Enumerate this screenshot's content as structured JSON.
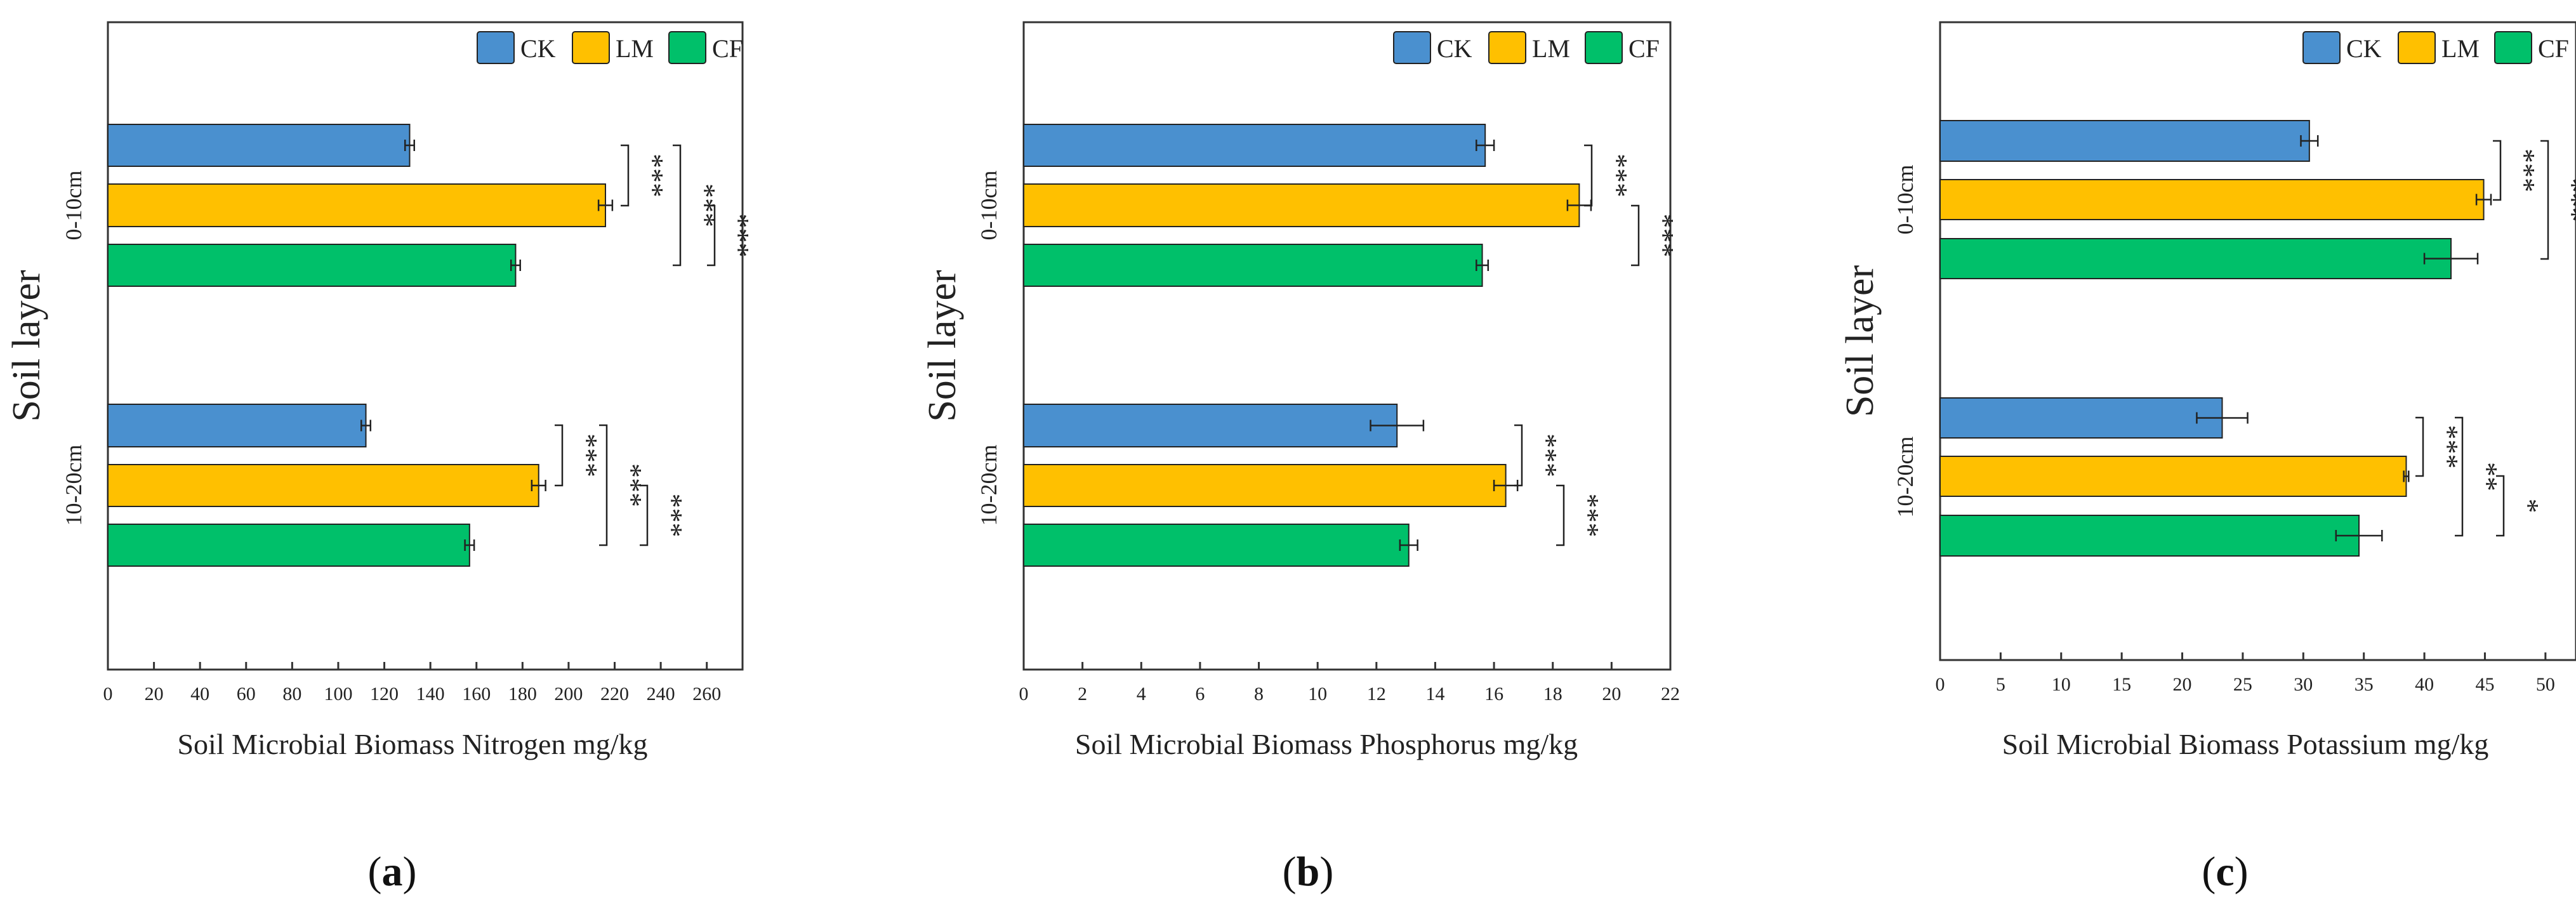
{
  "colors": {
    "CK": "#4a90cf",
    "LM": "#ffc000",
    "CF": "#00c06a",
    "frame": "#333333"
  },
  "chart_data": [
    {
      "type": "bar",
      "orientation": "horizontal",
      "panel": "a",
      "xlabel": "Soil Microbial Biomass Nitrogen mg/kg",
      "ylabel": "Soil layer",
      "xlim": [
        0,
        270
      ],
      "xticks": [
        0,
        20,
        40,
        60,
        80,
        100,
        120,
        140,
        160,
        180,
        200,
        220,
        240,
        260
      ],
      "legend": [
        "CK",
        "LM",
        "CF"
      ],
      "categories": [
        "0-10cm",
        "10-20cm"
      ],
      "series": [
        {
          "name": "CK",
          "values": [
            131,
            112
          ],
          "errors": [
            2,
            2
          ]
        },
        {
          "name": "LM",
          "values": [
            216,
            187
          ],
          "errors": [
            3,
            3
          ]
        },
        {
          "name": "CF",
          "values": [
            177,
            157
          ],
          "errors": [
            2,
            2
          ]
        }
      ],
      "significance": [
        {
          "group": "0-10cm",
          "from": "CK",
          "to": "LM",
          "label": "***"
        },
        {
          "group": "0-10cm",
          "from": "CK",
          "to": "CF",
          "label": "***"
        },
        {
          "group": "0-10cm",
          "from": "LM",
          "to": "CF",
          "label": "***"
        },
        {
          "group": "10-20cm",
          "from": "CK",
          "to": "LM",
          "label": "***"
        },
        {
          "group": "10-20cm",
          "from": "CK",
          "to": "CF",
          "label": "***"
        },
        {
          "group": "10-20cm",
          "from": "LM",
          "to": "CF",
          "label": "***"
        }
      ]
    },
    {
      "type": "bar",
      "orientation": "horizontal",
      "panel": "b",
      "xlabel": "Soil  Microbial Biomass Phosphorus mg/kg",
      "ylabel": "Soil layer",
      "xlim": [
        0,
        22
      ],
      "xticks": [
        0,
        2,
        4,
        6,
        8,
        10,
        12,
        14,
        16,
        18,
        20,
        22
      ],
      "legend": [
        "CK",
        "LM",
        "CF"
      ],
      "categories": [
        "0-10cm",
        "10-20cm"
      ],
      "series": [
        {
          "name": "CK",
          "values": [
            15.7,
            12.7
          ],
          "errors": [
            0.3,
            0.9
          ]
        },
        {
          "name": "LM",
          "values": [
            18.9,
            16.4
          ],
          "errors": [
            0.4,
            0.4
          ]
        },
        {
          "name": "CF",
          "values": [
            15.6,
            13.1
          ],
          "errors": [
            0.2,
            0.3
          ]
        }
      ],
      "significance": [
        {
          "group": "0-10cm",
          "from": "CK",
          "to": "LM",
          "label": "***"
        },
        {
          "group": "0-10cm",
          "from": "LM",
          "to": "CF",
          "label": "***"
        },
        {
          "group": "10-20cm",
          "from": "CK",
          "to": "LM",
          "label": "***"
        },
        {
          "group": "10-20cm",
          "from": "LM",
          "to": "CF",
          "label": "***"
        }
      ]
    },
    {
      "type": "bar",
      "orientation": "horizontal",
      "panel": "c",
      "xlabel": "Soil Microbial Biomass Potassium mg/kg",
      "ylabel": "Soil layer",
      "xlim": [
        0,
        52
      ],
      "xticks": [
        0,
        5,
        10,
        15,
        20,
        25,
        30,
        35,
        40,
        45,
        50
      ],
      "legend": [
        "CK",
        "LM",
        "CF"
      ],
      "categories": [
        "0-10cm",
        "10-20cm"
      ],
      "series": [
        {
          "name": "CK",
          "values": [
            30.5,
            23.3
          ],
          "errors": [
            0.7,
            2.1
          ]
        },
        {
          "name": "LM",
          "values": [
            44.9,
            38.5
          ],
          "errors": [
            0.6,
            0.2
          ]
        },
        {
          "name": "CF",
          "values": [
            42.2,
            34.6
          ],
          "errors": [
            2.2,
            1.9
          ]
        }
      ],
      "significance": [
        {
          "group": "0-10cm",
          "from": "CK",
          "to": "LM",
          "label": "***"
        },
        {
          "group": "0-10cm",
          "from": "CK",
          "to": "CF",
          "label": "***"
        },
        {
          "group": "10-20cm",
          "from": "CK",
          "to": "LM",
          "label": "***"
        },
        {
          "group": "10-20cm",
          "from": "CK",
          "to": "CF",
          "label": "**"
        },
        {
          "group": "10-20cm",
          "from": "LM",
          "to": "CF",
          "label": "*"
        }
      ]
    }
  ],
  "panel_labels": [
    {
      "open": "(",
      "letter": "a",
      "close": ")"
    },
    {
      "open": "(",
      "letter": "b",
      "close": ")"
    },
    {
      "open": "(",
      "letter": "c",
      "close": ")"
    }
  ]
}
